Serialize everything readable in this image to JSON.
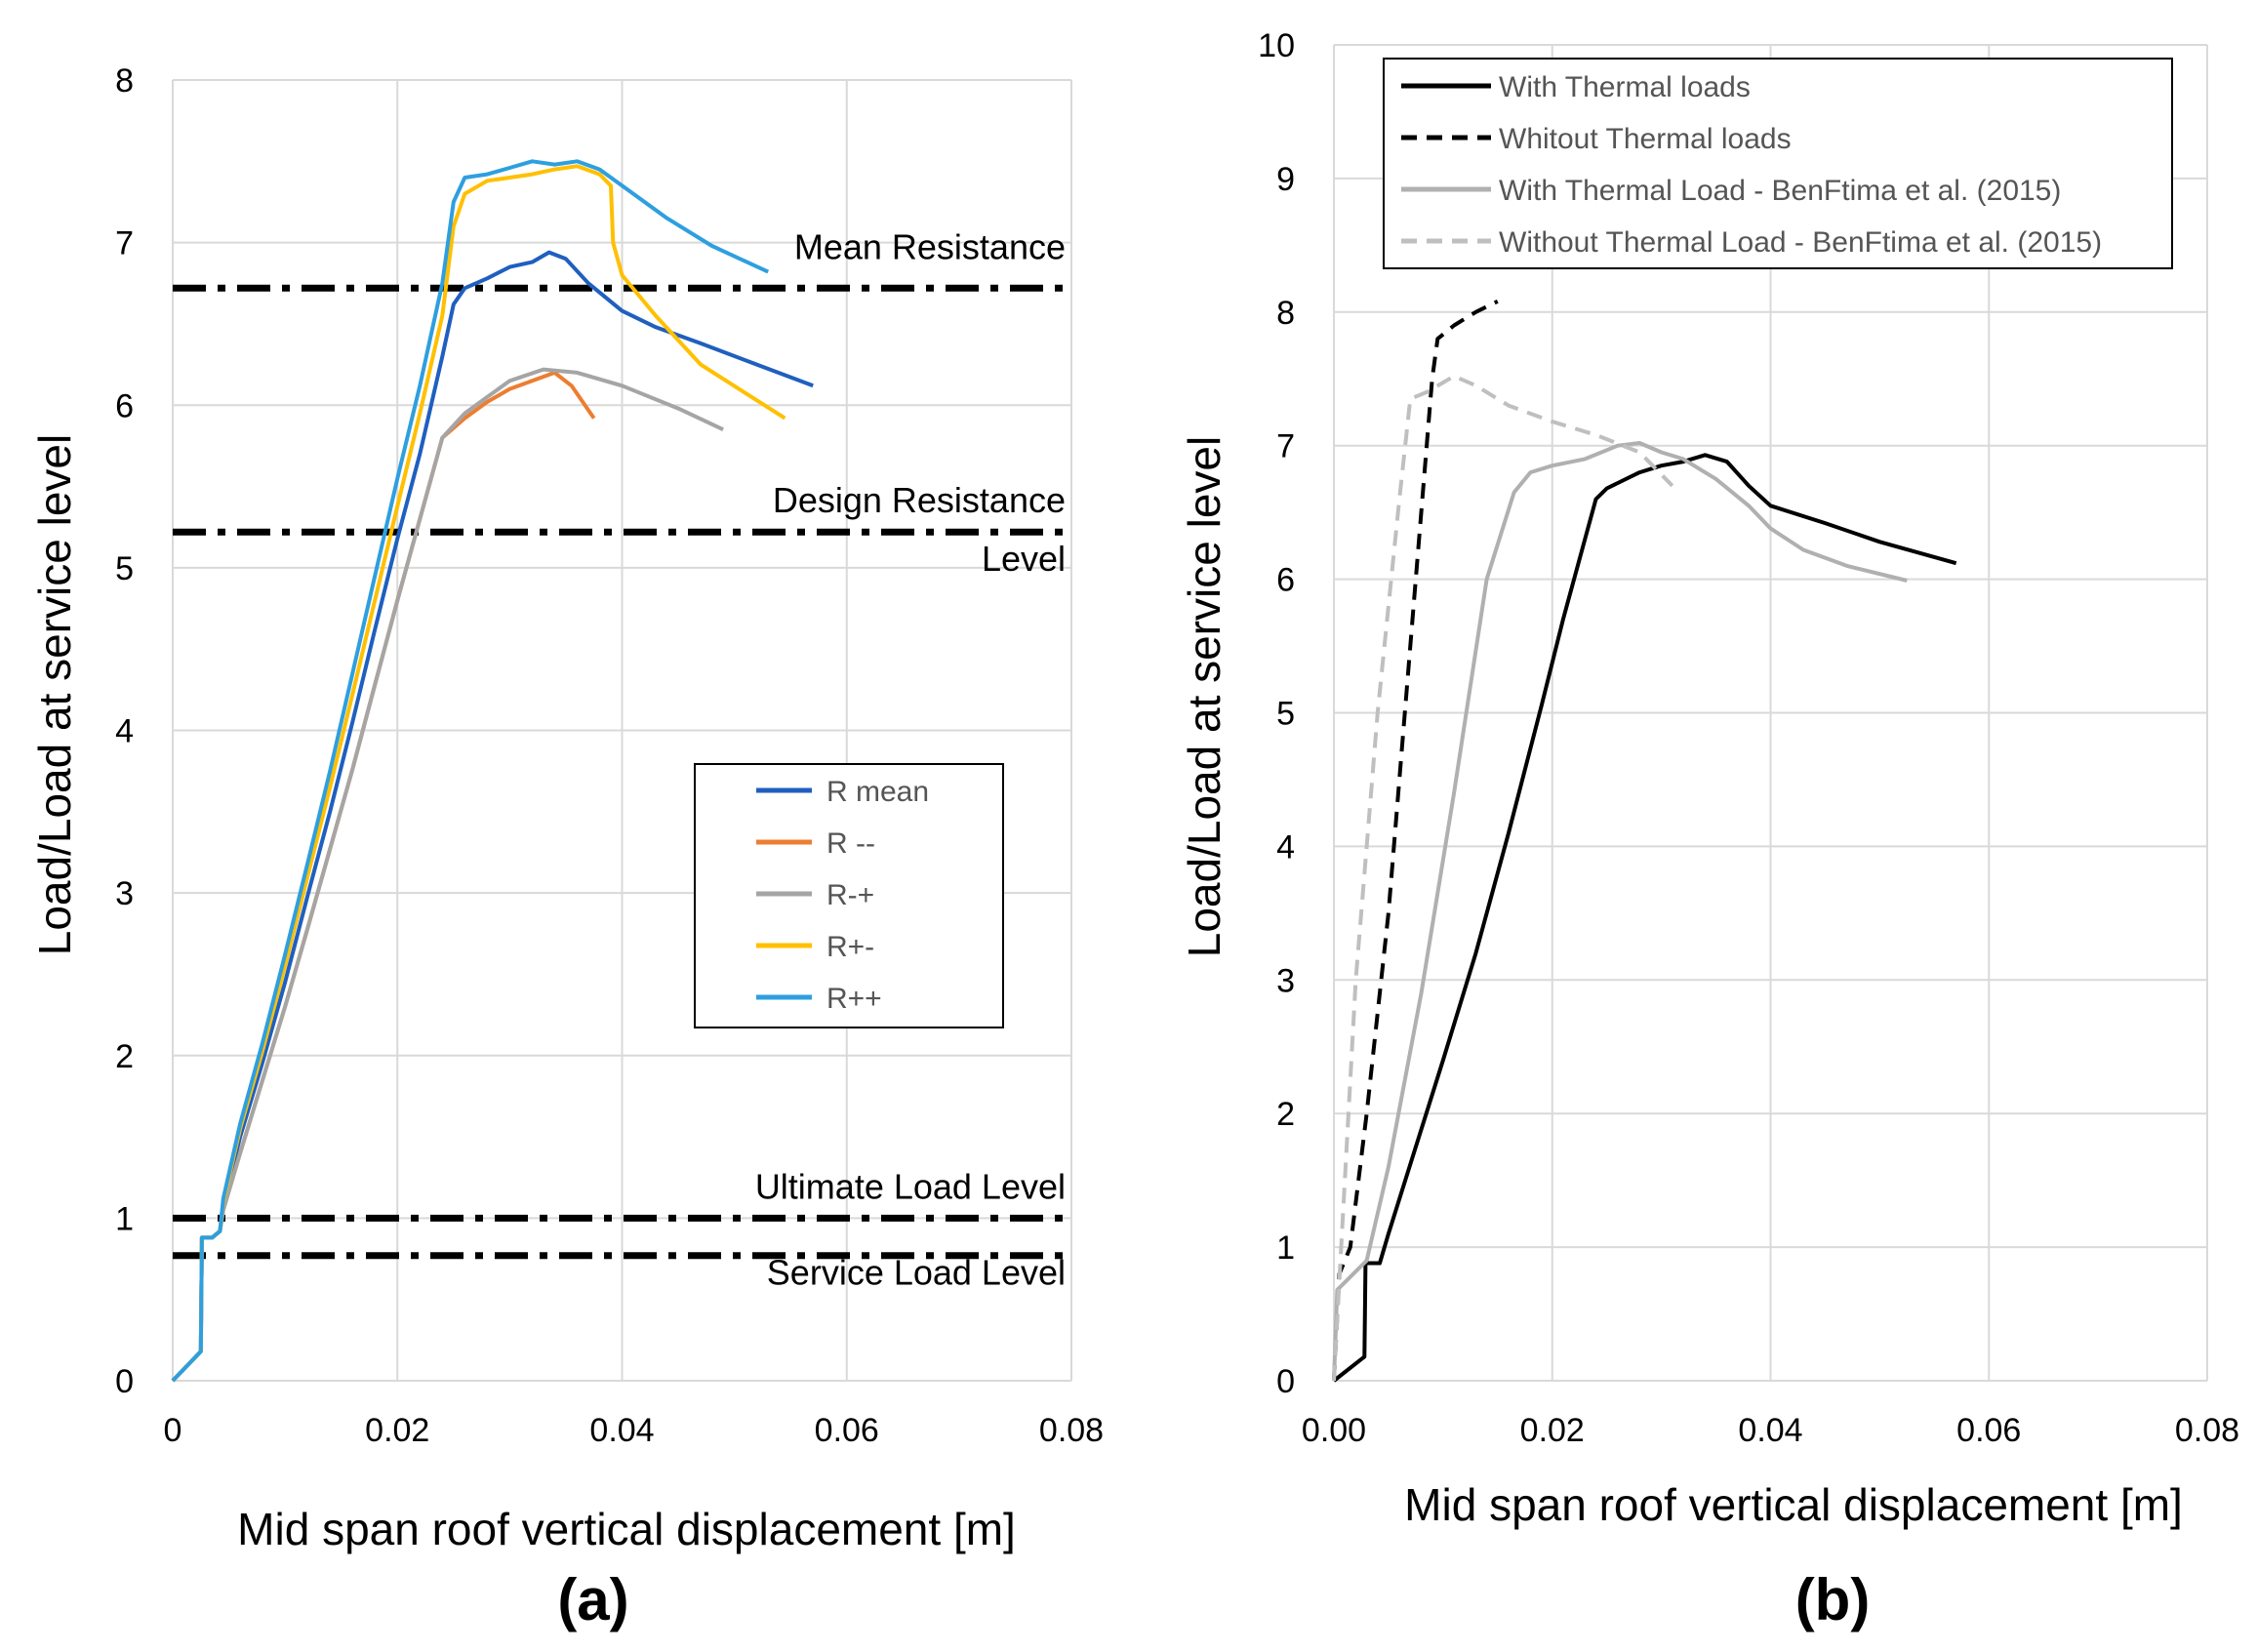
{
  "chart_data": [
    {
      "type": "line",
      "panel_label": "(a)",
      "title": "",
      "xlabel": "Mid span roof vertical displacement [m]",
      "ylabel": "Load/Load at service level",
      "xlim": [
        0,
        0.08
      ],
      "ylim": [
        0,
        8
      ],
      "x_ticks": [
        "0",
        "0.02",
        "0.04",
        "0.06",
        "0.08"
      ],
      "y_ticks": [
        "0",
        "1",
        "2",
        "3",
        "4",
        "5",
        "6",
        "7",
        "8"
      ],
      "grid": true,
      "legend_position": "center-right",
      "reference_lines": [
        {
          "label": "Mean Resistance",
          "y": 6.72
        },
        {
          "label": "Design Resistance",
          "label2": "Level",
          "y": 5.22
        },
        {
          "label": "Ultimate Load Level",
          "y": 1.0
        },
        {
          "label": "Service Load Level",
          "y": 0.77
        }
      ],
      "series": [
        {
          "name": "R mean",
          "color": "#1f5fbf",
          "x": [
            0,
            0.0025,
            0.0026,
            0.0035,
            0.0042,
            0.0045,
            0.006,
            0.008,
            0.01,
            0.012,
            0.014,
            0.016,
            0.018,
            0.02,
            0.022,
            0.024,
            0.025,
            0.026,
            0.028,
            0.03,
            0.032,
            0.0335,
            0.035,
            0.037,
            0.04,
            0.043,
            0.047,
            0.052,
            0.057
          ],
          "y": [
            0,
            0.18,
            0.88,
            0.88,
            0.92,
            1.08,
            1.5,
            1.96,
            2.45,
            2.98,
            3.5,
            4.05,
            4.62,
            5.18,
            5.7,
            6.3,
            6.62,
            6.72,
            6.78,
            6.85,
            6.88,
            6.94,
            6.9,
            6.75,
            6.58,
            6.48,
            6.38,
            6.25,
            6.12
          ]
        },
        {
          "name": "R --",
          "color": "#ed7d31",
          "x": [
            0,
            0.0025,
            0.0026,
            0.0035,
            0.0042,
            0.0045,
            0.006,
            0.008,
            0.01,
            0.012,
            0.014,
            0.016,
            0.018,
            0.02,
            0.022,
            0.024,
            0.026,
            0.028,
            0.03,
            0.032,
            0.034,
            0.0355,
            0.0375
          ],
          "y": [
            0,
            0.18,
            0.88,
            0.88,
            0.92,
            1.05,
            1.4,
            1.85,
            2.3,
            2.78,
            3.27,
            3.76,
            4.28,
            4.8,
            5.3,
            5.8,
            5.92,
            6.02,
            6.1,
            6.15,
            6.2,
            6.12,
            5.92
          ]
        },
        {
          "name": "R-+",
          "color": "#a5a5a5",
          "x": [
            0,
            0.0025,
            0.0026,
            0.0035,
            0.0042,
            0.0045,
            0.006,
            0.008,
            0.01,
            0.012,
            0.014,
            0.016,
            0.018,
            0.02,
            0.022,
            0.024,
            0.026,
            0.028,
            0.03,
            0.033,
            0.036,
            0.04,
            0.045,
            0.049
          ],
          "y": [
            0,
            0.18,
            0.88,
            0.88,
            0.92,
            1.05,
            1.4,
            1.85,
            2.3,
            2.78,
            3.27,
            3.76,
            4.28,
            4.8,
            5.3,
            5.8,
            5.95,
            6.05,
            6.15,
            6.22,
            6.2,
            6.12,
            5.98,
            5.85
          ]
        },
        {
          "name": "R+-",
          "color": "#ffc000",
          "x": [
            0,
            0.0025,
            0.0026,
            0.0035,
            0.0042,
            0.0045,
            0.006,
            0.008,
            0.01,
            0.012,
            0.014,
            0.016,
            0.018,
            0.02,
            0.022,
            0.024,
            0.025,
            0.026,
            0.028,
            0.03,
            0.032,
            0.034,
            0.036,
            0.038,
            0.039,
            0.0392,
            0.04,
            0.043,
            0.047,
            0.0545
          ],
          "y": [
            0,
            0.18,
            0.88,
            0.88,
            0.92,
            1.1,
            1.55,
            2.03,
            2.55,
            3.1,
            3.65,
            4.22,
            4.8,
            5.38,
            5.95,
            6.55,
            7.1,
            7.3,
            7.38,
            7.4,
            7.42,
            7.45,
            7.47,
            7.42,
            7.35,
            7.0,
            6.8,
            6.55,
            6.25,
            5.92
          ]
        },
        {
          "name": "R++",
          "color": "#2e9fdf",
          "x": [
            0,
            0.0025,
            0.0026,
            0.0035,
            0.0042,
            0.0045,
            0.006,
            0.008,
            0.01,
            0.012,
            0.014,
            0.016,
            0.018,
            0.02,
            0.022,
            0.024,
            0.025,
            0.026,
            0.028,
            0.03,
            0.032,
            0.034,
            0.036,
            0.038,
            0.04,
            0.044,
            0.048,
            0.053
          ],
          "y": [
            0,
            0.18,
            0.88,
            0.88,
            0.92,
            1.12,
            1.58,
            2.08,
            2.62,
            3.18,
            3.75,
            4.35,
            4.95,
            5.55,
            6.12,
            6.75,
            7.25,
            7.4,
            7.42,
            7.46,
            7.5,
            7.48,
            7.5,
            7.45,
            7.35,
            7.15,
            6.98,
            6.82
          ]
        }
      ]
    },
    {
      "type": "line",
      "panel_label": "(b)",
      "title": "",
      "xlabel": "Mid span roof vertical displacement [m]",
      "ylabel": "Load/Load at service level",
      "xlim": [
        0,
        0.08
      ],
      "ylim": [
        0,
        10
      ],
      "x_ticks": [
        "0.00",
        "0.02",
        "0.04",
        "0.06",
        "0.08"
      ],
      "y_ticks": [
        "0",
        "1",
        "2",
        "3",
        "4",
        "5",
        "6",
        "7",
        "8",
        "9",
        "10"
      ],
      "grid": true,
      "legend_position": "top",
      "series": [
        {
          "name": "With Thermal loads",
          "color": "#000000",
          "dash": "solid",
          "x": [
            0,
            0.0028,
            0.0029,
            0.0042,
            0.005,
            0.007,
            0.01,
            0.013,
            0.016,
            0.019,
            0.021,
            0.023,
            0.024,
            0.025,
            0.026,
            0.028,
            0.03,
            0.032,
            0.034,
            0.036,
            0.038,
            0.04,
            0.045,
            0.05,
            0.057
          ],
          "y": [
            0,
            0.18,
            0.88,
            0.88,
            1.1,
            1.62,
            2.4,
            3.2,
            4.1,
            5.05,
            5.7,
            6.3,
            6.6,
            6.68,
            6.72,
            6.8,
            6.85,
            6.88,
            6.93,
            6.88,
            6.7,
            6.55,
            6.42,
            6.28,
            6.12
          ]
        },
        {
          "name": "Whitout Thermal loads",
          "color": "#000000",
          "dash": "dashed",
          "x": [
            0,
            0.0005,
            0.0015,
            0.003,
            0.005,
            0.007,
            0.0085,
            0.009,
            0.0095,
            0.011,
            0.013,
            0.015
          ],
          "y": [
            0,
            0.8,
            1.0,
            2.0,
            3.5,
            5.5,
            7.0,
            7.5,
            7.8,
            7.9,
            8.0,
            8.08
          ]
        },
        {
          "name": "With Thermal Load - BenFtima et al. (2015)",
          "color": "#b0b0b0",
          "dash": "solid",
          "x": [
            0,
            0.0003,
            0.003,
            0.005,
            0.008,
            0.011,
            0.014,
            0.0165,
            0.018,
            0.02,
            0.023,
            0.026,
            0.028,
            0.03,
            0.032,
            0.035,
            0.038,
            0.04,
            0.043,
            0.047,
            0.0525
          ],
          "y": [
            0,
            0.68,
            0.9,
            1.6,
            2.9,
            4.4,
            6.0,
            6.65,
            6.8,
            6.85,
            6.9,
            7.0,
            7.02,
            6.95,
            6.9,
            6.75,
            6.55,
            6.38,
            6.22,
            6.1,
            5.99
          ]
        },
        {
          "name": "Without Thermal Load - BenFtima et al. (2015)",
          "color": "#bfbfbf",
          "dash": "dashed",
          "x": [
            0,
            0.001,
            0.002,
            0.004,
            0.006,
            0.007,
            0.0085,
            0.011,
            0.013,
            0.016,
            0.02,
            0.024,
            0.028,
            0.031
          ],
          "y": [
            0,
            1.5,
            3.0,
            5.0,
            6.6,
            7.35,
            7.4,
            7.52,
            7.45,
            7.3,
            7.18,
            7.08,
            6.95,
            6.7
          ]
        }
      ]
    }
  ]
}
